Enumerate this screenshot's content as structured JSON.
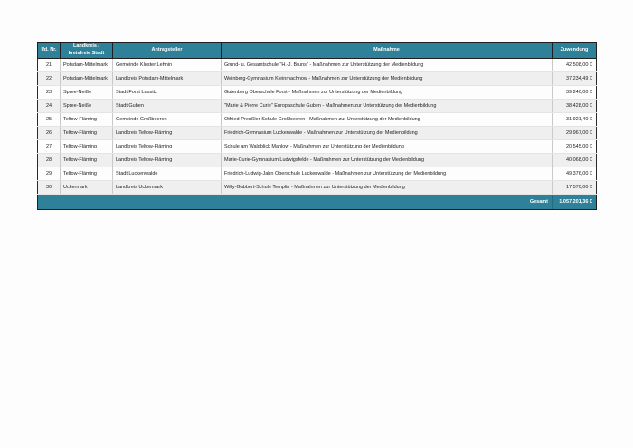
{
  "table": {
    "columns": [
      {
        "key": "nr",
        "label": "lfd. Nr."
      },
      {
        "key": "landkreis",
        "label": "Landkreis /\nkreisfreie Stadt"
      },
      {
        "key": "antragsteller",
        "label": "Antragsteller"
      },
      {
        "key": "massnahme",
        "label": "Maßnahme"
      },
      {
        "key": "zuwendung",
        "label": "Zuwendung"
      }
    ],
    "rows": [
      {
        "nr": "21",
        "landkreis": "Potsdam-Mittelmark",
        "antragsteller": "Gemeinde Kloster Lehnin",
        "massnahme": "Grund- u. Gesamtschule \"H.-J. Bruns\" - Maßnahmen zur Unterstützung der Medienbildung",
        "zuwendung": "42.508,00 €"
      },
      {
        "nr": "22",
        "landkreis": "Potsdam-Mittelmark",
        "antragsteller": "Landkreis Potsdam-Mittelmark",
        "massnahme": "Weinberg-Gymnasium Kleinmachnow - Maßnahmen zur Unterstützung der Medienbildung",
        "zuwendung": "37.234,49 €"
      },
      {
        "nr": "23",
        "landkreis": "Spree-Neiße",
        "antragsteller": "Stadt Forst Lausitz",
        "massnahme": "Gutenberg Oberschule Forst - Maßnahmen zur Unterstützung der Medienbildung",
        "zuwendung": "39.240,00 €"
      },
      {
        "nr": "24",
        "landkreis": "Spree-Neiße",
        "antragsteller": "Stadt Guben",
        "massnahme": "\"Marie & Pierre Curie\" Europaschule Guben - Maßnahmen zur Unterstützung der Medienbildung",
        "zuwendung": "38.428,00 €"
      },
      {
        "nr": "25",
        "landkreis": "Teltow-Fläming",
        "antragsteller": "Gemeinde Großbeeren",
        "massnahme": "Otfried-Preußler-Schule Großbeeren - Maßnahmen zur Unterstützung der Medienbildung",
        "zuwendung": "31.921,40 €"
      },
      {
        "nr": "26",
        "landkreis": "Teltow-Fläming",
        "antragsteller": "Landkreis Teltow-Fläming",
        "massnahme": "Friedrich-Gymnasium Luckenwalde - Maßnahmen zur Unterstützung der Medienbildung",
        "zuwendung": "29.967,00 €"
      },
      {
        "nr": "27",
        "landkreis": "Teltow-Fläming",
        "antragsteller": "Landkreis Teltow-Fläming",
        "massnahme": "Schule am Waldblick Mahlow - Maßnahmen zur Unterstützung der Medienbildung",
        "zuwendung": "20.545,00 €"
      },
      {
        "nr": "28",
        "landkreis": "Teltow-Fläming",
        "antragsteller": "Landkreis Teltow-Fläming",
        "massnahme": "Marie-Curie-Gymnasium Ludwigsfelde - Maßnahmen zur Unterstützung der Medienbildung",
        "zuwendung": "40.068,00 €"
      },
      {
        "nr": "29",
        "landkreis": "Teltow-Fläming",
        "antragsteller": "Stadt Luckenwalde",
        "massnahme": "Friedrich-Ludwig-Jahn Oberschule Luckenwalde - Maßnahmen zur Unterstützung der Medienbildung",
        "zuwendung": "49.376,00 €"
      },
      {
        "nr": "30",
        "landkreis": "Uckermark",
        "antragsteller": "Landkreis Uckermark",
        "massnahme": "Willy-Gabbert-Schule Templin - Maßnahmen zur Unterstützung der Medienbildung",
        "zuwendung": "17.570,00 €"
      }
    ],
    "footer": {
      "label": "Gesamt",
      "total": "1.057.201,36 €"
    },
    "accent_color": "#2e8199"
  }
}
